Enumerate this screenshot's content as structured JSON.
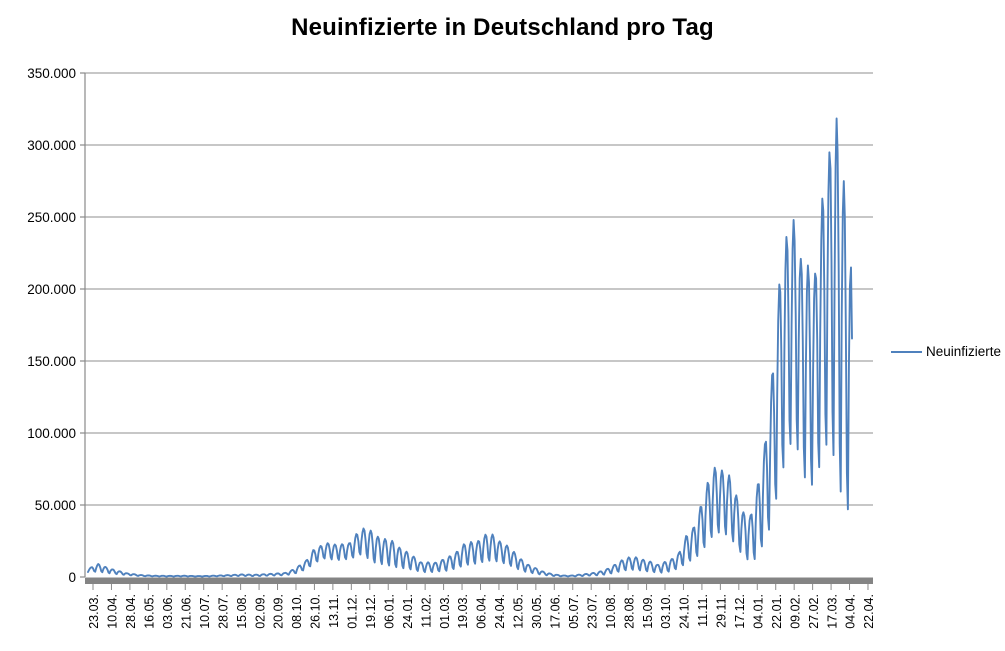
{
  "header": {
    "title": "Neuinfizierte in Deutschland pro Tag"
  },
  "legend": {
    "label": "Neuinfizierte",
    "line_color": "#4F81BD",
    "position": "right-middle"
  },
  "colors": {
    "background": "#FFFFFF",
    "series_blue": "#4F81BD",
    "gridline_gray": "#8F8F8F",
    "axis_gray": "#8A8A8A",
    "axis_band_gray": "#848484",
    "text_black": "#000000"
  },
  "chart_data": {
    "type": "line",
    "title": "Neuinfizierte in Deutschland pro Tag",
    "xlabel": "",
    "ylabel": "",
    "legend_entries": [
      "Neuinfizierte"
    ],
    "legend_position": "right-middle",
    "series_color": "#4F81BD",
    "grid": "horizontal gridlines at every 50.000; no vertical gridlines",
    "ylim": [
      0,
      350000
    ],
    "y_tick_values": [
      0,
      50000,
      100000,
      150000,
      200000,
      250000,
      300000,
      350000
    ],
    "y_tick_labels": [
      "0",
      "50.000",
      "100.000",
      "150.000",
      "200.000",
      "250.000",
      "300.000",
      "350.000"
    ],
    "x_tick_labels": [
      "23.03.",
      "10.04.",
      "28.04.",
      "16.05.",
      "03.06.",
      "21.06.",
      "10.07.",
      "28.07.",
      "15.08.",
      "02.09.",
      "20.09.",
      "08.10.",
      "26.10.",
      "13.11.",
      "01.12.",
      "19.12.",
      "06.01.",
      "24.01.",
      "11.02.",
      "01.03.",
      "19.03.",
      "06.04.",
      "24.04.",
      "12.05.",
      "30.05.",
      "17.06.",
      "05.07.",
      "23.07.",
      "10.08.",
      "28.08.",
      "15.09.",
      "03.10.",
      "24.10.",
      "11.11.",
      "29.11.",
      "17.12.",
      "04.01.",
      "22.01.",
      "09.02.",
      "27.02.",
      "17.03.",
      "04.04.",
      "22.04."
    ],
    "x_axis_description": "daily categories starting at first label 23.03.; label shown every ~18 days; plotted line ends shortly after the 04.04. label with empty axis space up to 22.04.",
    "day_count": 747,
    "series_reconstruction": "daily value = lo + (hi - lo) * weekday_pattern[day % 7]; day 0 is a Monday; envelope entries are [day_index, weekly_low, weekly_peak] read from the chart",
    "weekday_pattern_mon_to_sun": [
      0.03,
      0.55,
      0.88,
      1.0,
      0.93,
      0.62,
      0.15
    ],
    "weekly_envelope_d_lo_hi": [
      [
        0,
        3400,
        5800
      ],
      [
        3,
        3400,
        6700
      ],
      [
        10,
        3700,
        9000
      ],
      [
        17,
        2800,
        7000
      ],
      [
        24,
        2200,
        5300
      ],
      [
        38,
        1300,
        2600
      ],
      [
        52,
        600,
        1300
      ],
      [
        66,
        400,
        900
      ],
      [
        80,
        350,
        800
      ],
      [
        94,
        400,
        900
      ],
      [
        108,
        300,
        650
      ],
      [
        122,
        400,
        900
      ],
      [
        136,
        600,
        1300
      ],
      [
        150,
        700,
        1800
      ],
      [
        164,
        600,
        1600
      ],
      [
        178,
        900,
        2200
      ],
      [
        192,
        1200,
        2800
      ],
      [
        199,
        1800,
        4700
      ],
      [
        206,
        3000,
        7800
      ],
      [
        213,
        5500,
        11300
      ],
      [
        220,
        8500,
        18700
      ],
      [
        227,
        12000,
        21500
      ],
      [
        234,
        13000,
        23500
      ],
      [
        241,
        11000,
        22600
      ],
      [
        248,
        12000,
        22800
      ],
      [
        255,
        12000,
        23400
      ],
      [
        262,
        14000,
        29800
      ],
      [
        269,
        16000,
        33700
      ],
      [
        276,
        10000,
        32200
      ],
      [
        283,
        9000,
        28000
      ],
      [
        290,
        8000,
        26400
      ],
      [
        297,
        7000,
        25100
      ],
      [
        304,
        6000,
        20400
      ],
      [
        311,
        5500,
        17600
      ],
      [
        318,
        4500,
        14200
      ],
      [
        325,
        3500,
        10200
      ],
      [
        332,
        3000,
        10200
      ],
      [
        339,
        3500,
        9900
      ],
      [
        346,
        3900,
        11900
      ],
      [
        353,
        4300,
        14400
      ],
      [
        360,
        5900,
        17500
      ],
      [
        367,
        7500,
        22700
      ],
      [
        374,
        8500,
        24300
      ],
      [
        381,
        9000,
        25000
      ],
      [
        388,
        10500,
        29400
      ],
      [
        395,
        11000,
        29500
      ],
      [
        402,
        10000,
        24700
      ],
      [
        409,
        8500,
        21900
      ],
      [
        416,
        6500,
        17400
      ],
      [
        423,
        4200,
        12300
      ],
      [
        430,
        3000,
        8500
      ],
      [
        437,
        2200,
        6200
      ],
      [
        444,
        1500,
        3800
      ],
      [
        451,
        900,
        2400
      ],
      [
        458,
        500,
        1500
      ],
      [
        465,
        400,
        1000
      ],
      [
        472,
        350,
        1000
      ],
      [
        479,
        500,
        1600
      ],
      [
        486,
        800,
        2100
      ],
      [
        493,
        1000,
        2800
      ],
      [
        500,
        1200,
        3800
      ],
      [
        507,
        1800,
        5600
      ],
      [
        514,
        2800,
        8400
      ],
      [
        521,
        4000,
        11500
      ],
      [
        528,
        4800,
        13600
      ],
      [
        535,
        4700,
        13700
      ],
      [
        542,
        4000,
        12000
      ],
      [
        549,
        3500,
        10700
      ],
      [
        556,
        3000,
        8500
      ],
      [
        563,
        2800,
        10400
      ],
      [
        570,
        4000,
        12400
      ],
      [
        577,
        6000,
        16600
      ],
      [
        584,
        9000,
        28500
      ],
      [
        591,
        12000,
        33900
      ],
      [
        598,
        15000,
        48600
      ],
      [
        605,
        23000,
        65400
      ],
      [
        612,
        29000,
        75900
      ],
      [
        619,
        30000,
        74000
      ],
      [
        626,
        27000,
        70600
      ],
      [
        633,
        21000,
        56700
      ],
      [
        640,
        13000,
        44900
      ],
      [
        647,
        10000,
        42800
      ],
      [
        654,
        12000,
        64300
      ],
      [
        661,
        25000,
        92200
      ],
      [
        668,
        34000,
        140200
      ],
      [
        675,
        63000,
        203100
      ],
      [
        682,
        78000,
        236100
      ],
      [
        689,
        95000,
        247900
      ],
      [
        696,
        76000,
        221000
      ],
      [
        703,
        56000,
        216300
      ],
      [
        710,
        62000,
        210700
      ],
      [
        717,
        78000,
        262800
      ],
      [
        724,
        92000,
        294900
      ],
      [
        731,
        67000,
        318400
      ],
      [
        738,
        41000,
        274900
      ],
      [
        745,
        41000,
        215000
      ],
      [
        746,
        41000,
        175000
      ]
    ]
  }
}
